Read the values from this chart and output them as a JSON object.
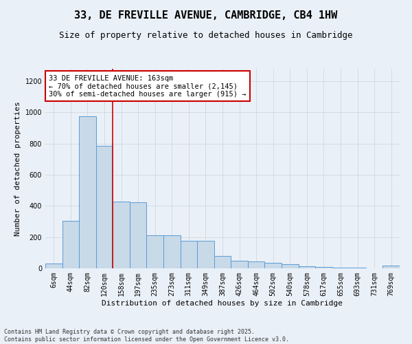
{
  "title": "33, DE FREVILLE AVENUE, CAMBRIDGE, CB4 1HW",
  "subtitle": "Size of property relative to detached houses in Cambridge",
  "xlabel": "Distribution of detached houses by size in Cambridge",
  "ylabel": "Number of detached properties",
  "categories": [
    "6sqm",
    "44sqm",
    "82sqm",
    "120sqm",
    "158sqm",
    "197sqm",
    "235sqm",
    "273sqm",
    "311sqm",
    "349sqm",
    "387sqm",
    "426sqm",
    "464sqm",
    "502sqm",
    "540sqm",
    "578sqm",
    "617sqm",
    "655sqm",
    "693sqm",
    "731sqm",
    "769sqm"
  ],
  "values": [
    30,
    305,
    975,
    785,
    430,
    425,
    210,
    210,
    175,
    175,
    80,
    50,
    45,
    35,
    25,
    15,
    8,
    5,
    3,
    2,
    18
  ],
  "bar_color": "#c8d9e8",
  "bar_edge_color": "#5b9bd5",
  "grid_color": "#d0d8e0",
  "background_color": "#eaf0f7",
  "vline_color": "#cc0000",
  "annotation_text": "33 DE FREVILLE AVENUE: 163sqm\n← 70% of detached houses are smaller (2,145)\n30% of semi-detached houses are larger (915) →",
  "annotation_box_color": "#ffffff",
  "annotation_box_edge_color": "#cc0000",
  "footer_line1": "Contains HM Land Registry data © Crown copyright and database right 2025.",
  "footer_line2": "Contains public sector information licensed under the Open Government Licence v3.0.",
  "ylim": [
    0,
    1280
  ],
  "yticks": [
    0,
    200,
    400,
    600,
    800,
    1000,
    1200
  ],
  "title_fontsize": 11,
  "subtitle_fontsize": 9,
  "axis_label_fontsize": 8,
  "tick_fontsize": 7,
  "annotation_fontsize": 7.5,
  "footer_fontsize": 6
}
